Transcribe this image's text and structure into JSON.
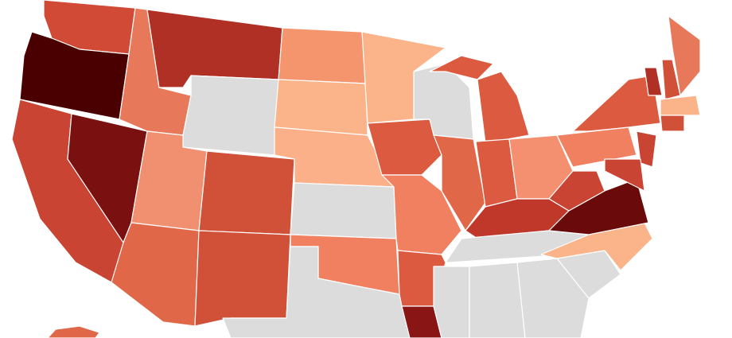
{
  "map": {
    "regions": [
      {
        "color": "#d04a35"
      },
      {
        "color": "#4a0000"
      },
      {
        "color": "#c94432"
      },
      {
        "color": "#7a1010"
      },
      {
        "color": "#e8785a"
      },
      {
        "color": "#b03025"
      },
      {
        "color": "#dcdcdc"
      },
      {
        "color": "#f09070"
      },
      {
        "color": "#d05038"
      },
      {
        "color": "#e06848"
      },
      {
        "color": "#d05038"
      },
      {
        "color": "#f4956e"
      },
      {
        "color": "#fbb48a"
      },
      {
        "color": "#fbb08a"
      },
      {
        "color": "#dcdcdc"
      },
      {
        "color": "#f08060"
      },
      {
        "color": "#dcdcdc"
      },
      {
        "color": "#fbb48a"
      },
      {
        "color": "#dc5a40"
      },
      {
        "color": "#f08060"
      },
      {
        "color": "#dc5a40"
      },
      {
        "color": "#8a1515"
      },
      {
        "color": "#dcdcdc"
      },
      {
        "color": "#e06848"
      },
      {
        "color": "#dc5a40"
      },
      {
        "color": "#dc5a40"
      },
      {
        "color": "#dc5a40"
      },
      {
        "color": "#f49070"
      },
      {
        "color": "#c0382a"
      },
      {
        "color": "#dcdcdc"
      },
      {
        "color": "#dcdcdc"
      },
      {
        "color": "#dcdcdc"
      },
      {
        "color": "#dcdcdc"
      },
      {
        "color": "#dcdcdc"
      },
      {
        "color": "#fbb48a"
      },
      {
        "color": "#6a0a0a"
      },
      {
        "color": "#c94432"
      },
      {
        "color": "#f08060"
      },
      {
        "color": "#dc5a40"
      },
      {
        "color": "#e8785a"
      },
      {
        "color": "#b03025"
      },
      {
        "color": "#d05038"
      },
      {
        "color": "#fbb48a"
      },
      {
        "color": "#d05038"
      },
      {
        "color": "#c94432"
      },
      {
        "color": "#c94432"
      },
      {
        "color": "#e06848"
      }
    ]
  }
}
